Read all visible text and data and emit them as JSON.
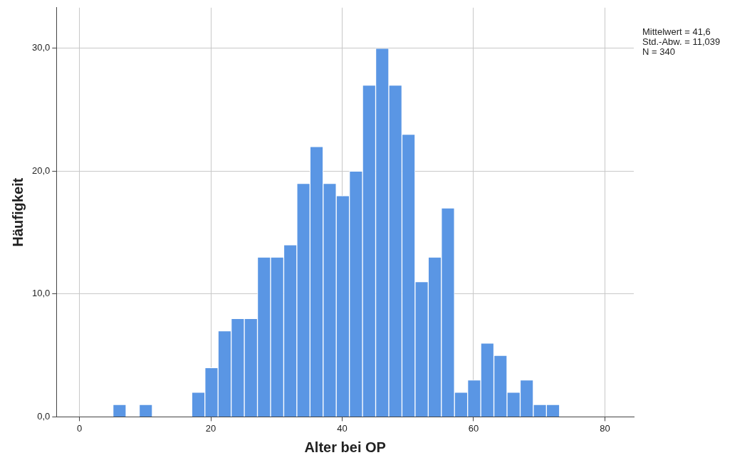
{
  "chart_data": {
    "type": "histogram",
    "xlabel": "Alter bei OP",
    "ylabel": "Häufigkeit",
    "bins": [
      5.1,
      7.1,
      9.1,
      11.1,
      13.1,
      15.1,
      17.1,
      19.1,
      21.1,
      23.1,
      25.1,
      27.1,
      29.1,
      31.1,
      33.1,
      35.1,
      37.1,
      39.1,
      41.1,
      43.1,
      45.1,
      47.1,
      49.1,
      51.1,
      53.1,
      55.1,
      57.1,
      59.1,
      61.1,
      63.1,
      65.1,
      67.1,
      69.1,
      71.1,
      73.1
    ],
    "values": [
      1,
      0,
      1,
      0,
      0,
      0,
      2,
      4,
      7,
      8,
      8,
      13,
      13,
      14,
      19,
      22,
      19,
      18,
      20,
      27,
      30,
      27,
      23,
      11,
      13,
      17,
      2,
      3,
      6,
      5,
      2,
      3,
      1,
      1
    ],
    "color": "#5a96e4",
    "xlim": [
      -3.5,
      84.4
    ],
    "xticks": [
      0,
      20,
      40,
      60,
      80
    ],
    "ylim": [
      0,
      33.3
    ],
    "yticks": [
      {
        "value": 0,
        "label": "0,0"
      },
      {
        "value": 10,
        "label": "10,0"
      },
      {
        "value": 20,
        "label": "20,0"
      },
      {
        "value": 30,
        "label": "30,0"
      }
    ],
    "grid": true,
    "annotations": [
      "Mittelwert = 41,6",
      "Std.-Abw. = 11,039",
      "N = 340"
    ]
  }
}
